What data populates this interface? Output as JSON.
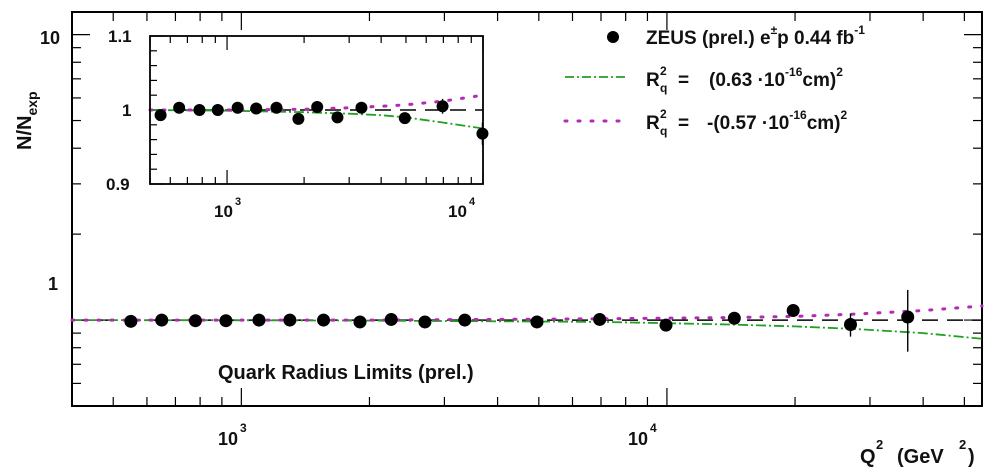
{
  "chart_data": [
    {
      "type": "scatter",
      "id": "main",
      "xlabel_base": "Q",
      "xlabel_sup": "2",
      "xlabel_unit_open": "(GeV",
      "xlabel_unit_sup": "2",
      "xlabel_unit_close": ")",
      "ylabel_base": "N/N",
      "ylabel_sub": "exp",
      "annotation": "Quark Radius Limits (prel.)",
      "xscale": "log",
      "yscale": "log",
      "xlim": [
        400,
        55000
      ],
      "ylim": [
        0.5,
        12
      ],
      "xticks": [
        {
          "base": "10",
          "exp": "3"
        },
        {
          "base": "10",
          "exp": "4"
        }
      ],
      "yticks": [
        "1",
        "10"
      ],
      "legend_position": "top-right",
      "series": [
        {
          "name": "ZEUS (prel.) e±p 0.44 fb-1",
          "marker": "circle",
          "color": "#000000",
          "x": [
            550,
            650,
            780,
            920,
            1100,
            1300,
            1560,
            1900,
            2250,
            2700,
            3350,
            4950,
            6950,
            9950,
            14400,
            19800,
            27000,
            36800
          ],
          "y": [
            0.99,
            1.0,
            0.995,
            0.995,
            1.0,
            1.0,
            1.0,
            0.985,
            1.005,
            0.985,
            1.0,
            0.985,
            1.005,
            0.96,
            1.015,
            1.08,
            0.965,
            1.025
          ],
          "yerr": [
            0.01,
            0.01,
            0.01,
            0.01,
            0.01,
            0.01,
            0.01,
            0.01,
            0.01,
            0.012,
            0.012,
            0.015,
            0.02,
            0.025,
            0.035,
            0.05,
            0.09,
            0.25
          ]
        },
        {
          "name": "R_q^2 = (0.63 ·10^-16 cm)^2",
          "style": "dash-dot",
          "color": "#22a022",
          "x": [
            400,
            1000,
            2000,
            4000,
            7000,
            10000,
            14000,
            20000,
            28000,
            40000,
            55000
          ],
          "y": [
            1.0,
            0.998,
            0.996,
            0.99,
            0.985,
            0.975,
            0.965,
            0.95,
            0.93,
            0.9,
            0.86
          ]
        },
        {
          "name": "R_q^2 = -(0.57 ·10^-16 cm)^2",
          "style": "dotted",
          "color": "#b42ab4",
          "x": [
            400,
            1000,
            2000,
            4000,
            7000,
            10000,
            14000,
            20000,
            28000,
            40000,
            55000
          ],
          "y": [
            1.0,
            1.0,
            1.0,
            1.005,
            1.01,
            1.015,
            1.02,
            1.03,
            1.05,
            1.08,
            1.12
          ]
        }
      ]
    },
    {
      "type": "scatter",
      "id": "inset",
      "xscale": "log",
      "xlim": [
        500,
        10000
      ],
      "ylim": [
        0.9,
        1.1
      ],
      "xticks": [
        {
          "base": "10",
          "exp": "3"
        },
        {
          "base": "10",
          "exp": "4"
        }
      ],
      "yticks": [
        "0.9",
        "1",
        "1.1"
      ],
      "series": [
        {
          "name": "ZEUS (prel.) e±p 0.44 fb-1",
          "marker": "circle",
          "color": "#000000",
          "x": [
            550,
            650,
            780,
            920,
            1100,
            1300,
            1560,
            1900,
            2250,
            2700,
            3350,
            4950,
            6950,
            9950
          ],
          "y": [
            0.993,
            1.003,
            1.0,
            1.0,
            1.003,
            1.002,
            1.003,
            0.988,
            1.004,
            0.99,
            1.003,
            0.989,
            1.005,
            0.968
          ],
          "yerr": [
            0.003,
            0.003,
            0.003,
            0.003,
            0.003,
            0.003,
            0.003,
            0.004,
            0.005,
            0.005,
            0.005,
            0.007,
            0.01,
            0.015
          ]
        },
        {
          "name": "R_q^2 = (0.63 ·10^-16 cm)^2",
          "style": "dash-dot",
          "color": "#22a022",
          "x": [
            500,
            1000,
            2000,
            3000,
            4000,
            5000,
            7000,
            10000
          ],
          "y": [
            1.0,
            0.999,
            0.997,
            0.995,
            0.993,
            0.99,
            0.983,
            0.975
          ]
        },
        {
          "name": "R_q^2 = -(0.57 ·10^-16 cm)^2",
          "style": "dotted",
          "color": "#b42ab4",
          "x": [
            500,
            1000,
            2000,
            3000,
            4000,
            5000,
            7000,
            10000
          ],
          "y": [
            1.0,
            1.0,
            1.001,
            1.003,
            1.005,
            1.007,
            1.012,
            1.02
          ]
        }
      ]
    }
  ],
  "legend": [
    {
      "prefix": "ZEUS (prel.) e",
      "sup": "±",
      "mid": "p 0.44 fb",
      "sup2": "-1"
    },
    {
      "lhs_base": "R",
      "lhs_sup": "2",
      "lhs_sub": "q",
      "eq": "=",
      "body": "(0.63 ·10",
      "body_sup": "-16",
      "body_tail": "cm)",
      "tail_sup": "2"
    },
    {
      "lhs_base": "R",
      "lhs_sup": "2",
      "lhs_sub": "q",
      "eq": "=",
      "body": "-(0.57 ·10",
      "body_sup": "-16",
      "body_tail": "cm)",
      "tail_sup": "2"
    }
  ]
}
